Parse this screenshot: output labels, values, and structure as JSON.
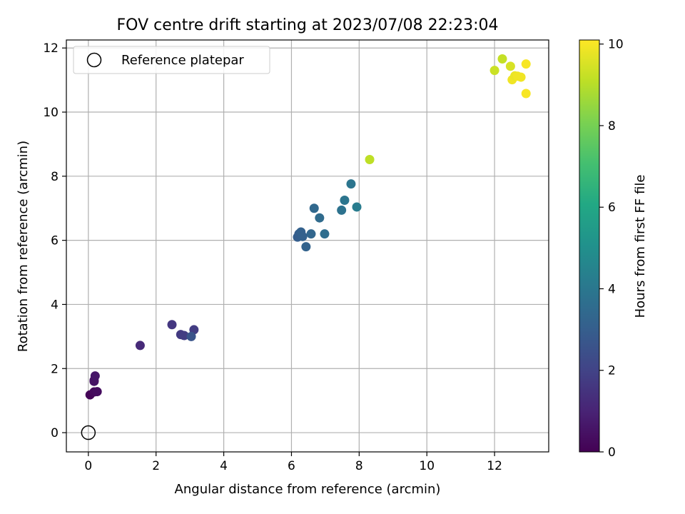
{
  "chart_data": {
    "type": "scatter",
    "title": "FOV centre drift starting at 2023/07/08 22:23:04",
    "xlabel": "Angular distance from reference (arcmin)",
    "ylabel": "Rotation from reference (arcmin)",
    "xlim": [
      -0.65,
      13.6
    ],
    "ylim": [
      -0.6,
      12.25
    ],
    "xticks": [
      0,
      2,
      4,
      6,
      8,
      10,
      12
    ],
    "yticks": [
      0,
      2,
      4,
      6,
      8,
      10,
      12
    ],
    "grid": true,
    "legend": {
      "position": "top-left",
      "entries": [
        "Reference platepar"
      ]
    },
    "reference_point": {
      "x": 0,
      "y": 0
    },
    "colorbar": {
      "label": "Hours from first FF file",
      "colormap": "viridis",
      "range": [
        0,
        10.1
      ],
      "ticks": [
        0,
        2,
        4,
        6,
        8,
        10
      ]
    },
    "points": [
      {
        "x": 0.05,
        "y": 1.18,
        "c": 0.1
      },
      {
        "x": 0.17,
        "y": 1.27,
        "c": 0.2
      },
      {
        "x": 0.26,
        "y": 1.28,
        "c": 0.3
      },
      {
        "x": 0.17,
        "y": 1.63,
        "c": 0.4
      },
      {
        "x": 0.17,
        "y": 1.6,
        "c": 0.5
      },
      {
        "x": 0.2,
        "y": 1.77,
        "c": 0.6
      },
      {
        "x": 1.53,
        "y": 2.72,
        "c": 1.2
      },
      {
        "x": 2.47,
        "y": 3.37,
        "c": 1.6
      },
      {
        "x": 2.73,
        "y": 3.06,
        "c": 1.7
      },
      {
        "x": 2.83,
        "y": 3.03,
        "c": 1.8
      },
      {
        "x": 3.12,
        "y": 3.21,
        "c": 1.8
      },
      {
        "x": 3.04,
        "y": 3.0,
        "c": 2.6
      },
      {
        "x": 6.18,
        "y": 6.1,
        "c": 3.0
      },
      {
        "x": 6.22,
        "y": 6.2,
        "c": 3.0
      },
      {
        "x": 6.28,
        "y": 6.26,
        "c": 3.1
      },
      {
        "x": 6.33,
        "y": 6.12,
        "c": 3.1
      },
      {
        "x": 6.43,
        "y": 5.8,
        "c": 3.2
      },
      {
        "x": 6.58,
        "y": 6.2,
        "c": 3.3
      },
      {
        "x": 6.67,
        "y": 7.0,
        "c": 3.4
      },
      {
        "x": 6.83,
        "y": 6.7,
        "c": 3.5
      },
      {
        "x": 6.98,
        "y": 6.2,
        "c": 3.6
      },
      {
        "x": 7.48,
        "y": 6.94,
        "c": 3.8
      },
      {
        "x": 7.57,
        "y": 7.25,
        "c": 3.9
      },
      {
        "x": 7.76,
        "y": 7.76,
        "c": 3.9
      },
      {
        "x": 7.93,
        "y": 7.04,
        "c": 4.2
      },
      {
        "x": 8.31,
        "y": 8.52,
        "c": 9.1
      },
      {
        "x": 12.0,
        "y": 11.3,
        "c": 9.3
      },
      {
        "x": 12.23,
        "y": 11.66,
        "c": 9.2
      },
      {
        "x": 12.47,
        "y": 11.43,
        "c": 9.5
      },
      {
        "x": 12.52,
        "y": 11.01,
        "c": 9.9
      },
      {
        "x": 12.6,
        "y": 11.13,
        "c": 9.8
      },
      {
        "x": 12.68,
        "y": 11.12,
        "c": 9.9
      },
      {
        "x": 12.78,
        "y": 11.09,
        "c": 9.9
      },
      {
        "x": 12.93,
        "y": 11.5,
        "c": 10.0
      },
      {
        "x": 12.93,
        "y": 10.58,
        "c": 10.0
      }
    ]
  }
}
